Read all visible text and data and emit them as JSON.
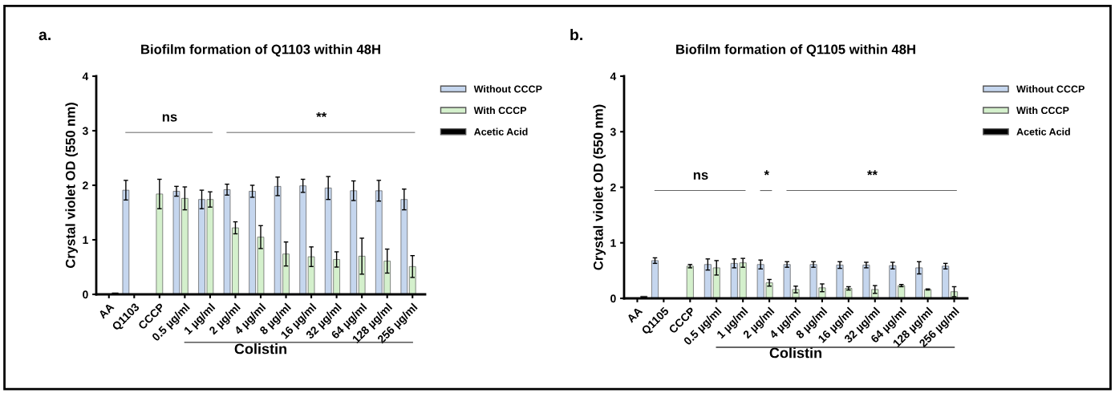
{
  "chart_data": [
    {
      "type": "bar",
      "title": "Biofilm formation of Q1103 within 48H",
      "xlabel": "Colistin",
      "ylabel": "Crystal violet OD (550 nm)",
      "categories": [
        "AA",
        "Q1103",
        "CCCP",
        "0.5 µg/ml",
        "1 µg/ml",
        "2 µg/ml",
        "4 µg/ml",
        "8 µg/ml",
        "16 µg/ml",
        "32 µg/ml",
        "64 µg/ml",
        "128 µg/ml",
        "256 µg/ml"
      ],
      "series": [
        {
          "name": "Without CCCP",
          "color": "#c5d6ee",
          "values": [
            null,
            1.91,
            null,
            1.89,
            1.74,
            1.92,
            1.89,
            1.98,
            1.99,
            1.95,
            1.9,
            1.9,
            1.74
          ],
          "errors": [
            null,
            0.18,
            null,
            0.09,
            0.17,
            0.1,
            0.11,
            0.17,
            0.12,
            0.21,
            0.18,
            0.19,
            0.19
          ]
        },
        {
          "name": "With CCCP",
          "color": "#d4f0cc",
          "values": [
            null,
            null,
            1.84,
            1.76,
            1.74,
            1.22,
            1.05,
            0.74,
            0.69,
            0.64,
            0.7,
            0.61,
            0.51
          ],
          "errors": [
            null,
            null,
            0.27,
            0.21,
            0.14,
            0.11,
            0.21,
            0.22,
            0.18,
            0.14,
            0.33,
            0.22,
            0.2
          ]
        },
        {
          "name": "Acetic Acid",
          "color": "#000000",
          "values": [
            0.03,
            null,
            null,
            null,
            null,
            null,
            null,
            null,
            null,
            null,
            null,
            null,
            null
          ]
        }
      ],
      "ylim": [
        0,
        4
      ],
      "yticks": [
        0,
        1,
        2,
        3,
        4
      ],
      "grid": false,
      "legend": "top right",
      "annotations": [
        "a.",
        "ns",
        "**"
      ]
    },
    {
      "type": "bar",
      "title": "Biofilm formation of Q1105 within 48H",
      "xlabel": "Colistin",
      "ylabel": "Crystal violet OD (550 nm)",
      "categories": [
        "AA",
        "Q1105",
        "CCCP",
        "0.5 µg/ml",
        "1 µg/ml",
        "2 µg/ml",
        "4 µg/ml",
        "8 µg/ml",
        "16 µg/ml",
        "32 µg/ml",
        "64 µg/ml",
        "128 µg/ml",
        "256 µg/ml"
      ],
      "series": [
        {
          "name": "Without CCCP",
          "color": "#c5d6ee",
          "values": [
            null,
            0.68,
            null,
            0.61,
            0.63,
            0.61,
            0.61,
            0.61,
            0.6,
            0.6,
            0.59,
            0.55,
            0.58
          ],
          "errors": [
            null,
            0.05,
            null,
            0.1,
            0.08,
            0.08,
            0.05,
            0.05,
            0.06,
            0.05,
            0.06,
            0.11,
            0.05
          ]
        },
        {
          "name": "With CCCP",
          "color": "#d4f0cc",
          "values": [
            null,
            null,
            0.58,
            0.55,
            0.64,
            0.28,
            0.16,
            0.19,
            0.18,
            0.16,
            0.23,
            0.16,
            0.12
          ],
          "errors": [
            null,
            null,
            0.03,
            0.13,
            0.08,
            0.06,
            0.06,
            0.07,
            0.03,
            0.07,
            0.02,
            0.01,
            0.09
          ]
        },
        {
          "name": "Acetic Acid",
          "color": "#000000",
          "values": [
            0.04,
            null,
            null,
            null,
            null,
            null,
            null,
            null,
            null,
            null,
            null,
            null,
            null
          ]
        }
      ],
      "ylim": [
        0,
        4
      ],
      "yticks": [
        0,
        1,
        2,
        3,
        4
      ],
      "grid": false,
      "legend": "top right",
      "annotations": [
        "b.",
        "ns",
        "*",
        "**"
      ]
    }
  ]
}
